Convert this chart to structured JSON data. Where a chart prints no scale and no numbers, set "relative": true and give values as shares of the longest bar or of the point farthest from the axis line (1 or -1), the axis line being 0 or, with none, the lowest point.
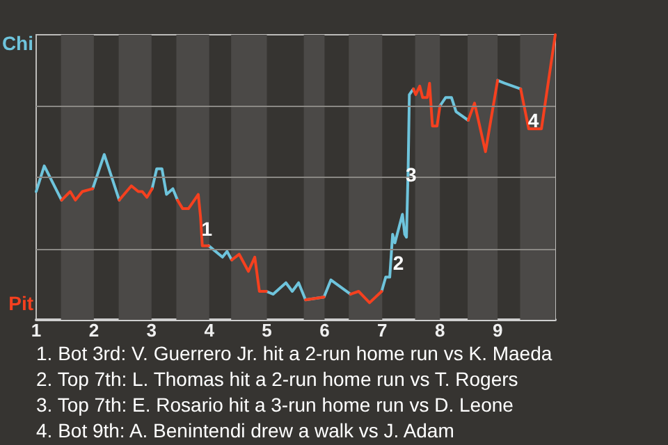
{
  "chart_data": {
    "type": "line",
    "x": [
      1.0,
      1.14,
      1.44,
      1.59,
      1.68,
      1.8,
      1.98,
      2.18,
      2.44,
      2.65,
      2.77,
      2.84,
      2.92,
      3.01,
      3.09,
      3.18,
      3.26,
      3.37,
      3.45,
      3.54,
      3.64,
      3.81,
      3.85,
      3.88,
      3.99,
      4.23,
      4.31,
      4.39,
      4.52,
      4.68,
      4.79,
      4.87,
      4.99,
      5.11,
      5.33,
      5.44,
      5.55,
      5.67,
      5.99,
      6.11,
      6.45,
      6.59,
      6.78,
      6.99,
      7.06,
      7.13,
      7.18,
      7.22,
      7.35,
      7.39,
      7.42,
      7.45,
      7.47,
      7.54,
      7.58,
      7.65,
      7.7,
      7.78,
      7.82,
      7.87,
      7.95,
      8.0,
      8.1,
      8.2,
      8.28,
      8.49,
      8.6,
      8.79,
      9.0,
      9.12,
      9.4,
      9.54,
      9.76,
      9.92,
      10
    ],
    "relative": true,
    "series": [
      {
        "color": "#6ec4dc",
        "values": [
          0.45,
          0.54,
          0.42,
          null,
          null,
          null,
          0.46,
          0.58,
          0.42,
          null,
          null,
          null,
          null,
          0.46,
          0.53,
          0.53,
          0.44,
          0.46,
          0.42,
          null,
          null,
          null,
          null,
          null,
          0.26,
          0.22,
          0.24,
          0.21,
          null,
          null,
          null,
          null,
          0.1,
          0.09,
          0.13,
          0.1,
          0.13,
          0.07,
          0.08,
          0.14,
          0.09,
          null,
          null,
          0.1,
          0.15,
          0.15,
          0.3,
          0.27,
          0.37,
          0.3,
          0.29,
          0.54,
          0.79,
          0.81,
          null,
          null,
          null,
          null,
          null,
          null,
          null,
          0.75,
          0.78,
          0.78,
          0.73,
          0.7,
          null,
          null,
          0.84,
          0.83,
          0.81,
          null,
          null,
          null,
          null
        ]
      },
      {
        "color": "#f5401f",
        "values": [
          null,
          null,
          0.42,
          0.45,
          0.42,
          0.45,
          0.46,
          null,
          0.42,
          0.47,
          0.45,
          0.45,
          0.43,
          0.46,
          null,
          null,
          null,
          null,
          0.42,
          0.39,
          0.39,
          0.44,
          0.36,
          0.26,
          0.26,
          null,
          null,
          0.21,
          0.23,
          0.17,
          0.22,
          0.1,
          0.1,
          null,
          null,
          null,
          null,
          0.07,
          0.08,
          null,
          0.09,
          0.1,
          0.06,
          0.1,
          null,
          null,
          null,
          null,
          null,
          null,
          null,
          null,
          null,
          0.81,
          0.79,
          0.82,
          0.78,
          0.78,
          0.83,
          0.68,
          0.68,
          0.75,
          null,
          null,
          null,
          0.7,
          0.76,
          0.59,
          0.84,
          null,
          0.81,
          0.67,
          0.67,
          0.89,
          1.0
        ]
      }
    ],
    "xlim": [
      1,
      10
    ],
    "xticks": [
      1,
      2,
      3,
      4,
      5,
      6,
      7,
      8,
      9
    ],
    "ref_lines": [
      {
        "axis": "y",
        "value": 0.25,
        "color": "#8a8884"
      },
      {
        "axis": "y",
        "value": 0.5,
        "color": "#8a8884"
      },
      {
        "axis": "y",
        "value": 0.75,
        "color": "#8a8884"
      }
    ],
    "bands": [
      {
        "axis": "x",
        "from": 1.43,
        "to": 2,
        "color": "#4b4947"
      },
      {
        "axis": "x",
        "from": 2.43,
        "to": 3,
        "color": "#4b4947"
      },
      {
        "axis": "x",
        "from": 3.43,
        "to": 4,
        "color": "#4b4947"
      },
      {
        "axis": "x",
        "from": 4.38,
        "to": 5,
        "color": "#4b4947"
      },
      {
        "axis": "x",
        "from": 5.64,
        "to": 6,
        "color": "#4b4947"
      },
      {
        "axis": "x",
        "from": 6.42,
        "to": 7,
        "color": "#4b4947"
      },
      {
        "axis": "x",
        "from": 7.57,
        "to": 8,
        "color": "#4b4947"
      },
      {
        "axis": "x",
        "from": 8.48,
        "to": 9,
        "color": "#4b4947"
      },
      {
        "axis": "x",
        "from": 9.39,
        "to": 10,
        "color": "#4b4947"
      }
    ],
    "annotations": [
      "Chi",
      "Pit",
      {
        "text": "1",
        "x": 3.96,
        "y": 0.32
      },
      {
        "text": "2",
        "x": 7.28,
        "y": 0.2
      },
      {
        "text": "3",
        "x": 7.5,
        "y": 0.51
      },
      {
        "text": "4",
        "x": 9.62,
        "y": 0.7
      },
      "1. Bot 3rd: V. Guerrero Jr. hit a 2-run home run vs K. Maeda",
      "2. Top 7th: L. Thomas hit a 2-run home run vs T. Rogers",
      "3. Top 7th: E. Rosario hit a 3-run home run vs D. Leone",
      "4. Bot 9th: A. Benintendi drew a walk vs J. Adam"
    ],
    "marker": "none",
    "line_style": "solid"
  }
}
